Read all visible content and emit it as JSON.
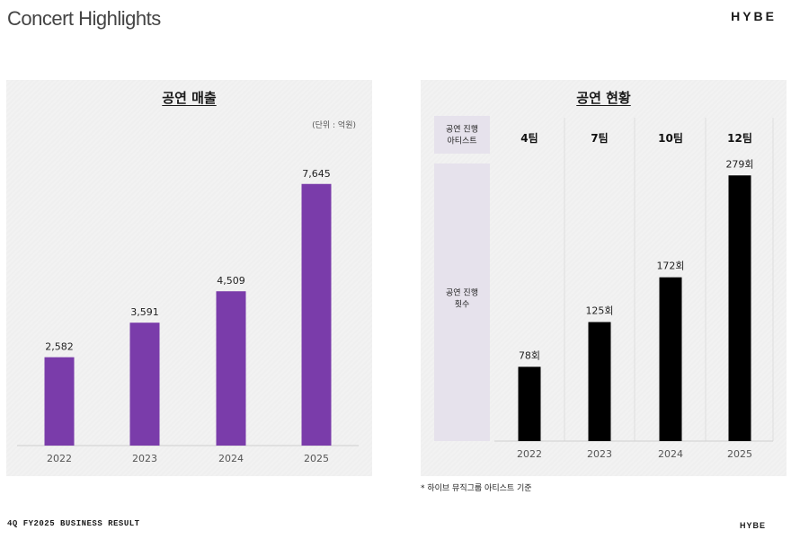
{
  "header": {
    "title": "Concert Highlights",
    "brand": "HYBE"
  },
  "footer": {
    "left": "4Q FY2025 BUSINESS RESULT",
    "right": "HYBE"
  },
  "colors": {
    "revenue_bar": "#7a3caa",
    "count_bar": "#000000",
    "row_header_bg": "#e6e2ec"
  },
  "chart_data": [
    {
      "type": "bar",
      "title": "공연 매출",
      "unit_label": "(단위 : 억원)",
      "categories": [
        "2022",
        "2023",
        "2024",
        "2025"
      ],
      "values": [
        2582,
        3591,
        4509,
        7645
      ],
      "value_labels": [
        "2,582",
        "3,591",
        "4,509",
        "7,645"
      ],
      "ylim": [
        0,
        8400
      ],
      "xlabel": "",
      "ylabel": ""
    },
    {
      "type": "bar",
      "title": "공연 현황",
      "row_header_artists": "공연 진행\n아티스트",
      "row_header_count": "공연 진행\n횟수",
      "categories": [
        "2022",
        "2023",
        "2024",
        "2025"
      ],
      "teams": [
        "4팀",
        "7팀",
        "10팀",
        "12팀"
      ],
      "values": [
        78,
        125,
        172,
        279
      ],
      "value_labels": [
        "78회",
        "125회",
        "172회",
        "279회"
      ],
      "ylim": [
        0,
        300
      ],
      "footnote": "* 하이브 뮤직그룹 아티스트 기준"
    }
  ]
}
